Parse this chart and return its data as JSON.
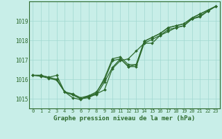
{
  "xlabel": "Graphe pression niveau de la mer (hPa)",
  "xlim": [
    -0.5,
    23.5
  ],
  "ylim": [
    1014.5,
    1020.0
  ],
  "yticks": [
    1015,
    1016,
    1017,
    1018,
    1019
  ],
  "xticks": [
    0,
    1,
    2,
    3,
    4,
    5,
    6,
    7,
    8,
    9,
    10,
    11,
    12,
    13,
    14,
    15,
    16,
    17,
    18,
    19,
    20,
    21,
    22,
    23
  ],
  "xtick_labels": [
    "0",
    "1",
    "2",
    "3",
    "4",
    "5",
    "6",
    "7",
    "8",
    "9",
    "10",
    "11",
    "12",
    "13",
    "14",
    "15",
    "16",
    "17",
    "18",
    "19",
    "20",
    "21",
    "22",
    "23"
  ],
  "bg_color": "#c8eee8",
  "grid_color": "#a0d8d0",
  "line_color": "#2d6a2d",
  "series": [
    {
      "x": [
        0,
        1,
        2,
        3,
        4,
        5,
        6,
        7,
        8,
        9,
        10,
        11,
        12,
        13,
        14,
        15,
        16,
        17,
        18,
        19,
        20,
        21,
        22,
        23
      ],
      "y": [
        1016.2,
        1016.2,
        1016.1,
        1016.2,
        1015.35,
        1015.05,
        1014.95,
        1015.15,
        1015.2,
        1015.85,
        1016.6,
        1017.05,
        1016.65,
        1016.65,
        1017.85,
        1018.05,
        1018.25,
        1018.55,
        1018.65,
        1018.75,
        1019.1,
        1019.2,
        1019.5,
        1019.75
      ]
    },
    {
      "x": [
        0,
        1,
        2,
        3,
        4,
        5,
        6,
        7,
        8,
        9,
        10,
        11,
        12,
        13,
        14,
        15,
        16,
        17,
        18,
        19,
        20,
        21,
        22,
        23
      ],
      "y": [
        1016.2,
        1016.15,
        1016.05,
        1015.95,
        1015.35,
        1015.2,
        1015.0,
        1015.05,
        1015.25,
        1015.45,
        1016.55,
        1016.95,
        1017.05,
        1017.45,
        1017.85,
        1017.85,
        1018.25,
        1018.45,
        1018.65,
        1018.75,
        1019.1,
        1019.25,
        1019.5,
        1019.75
      ]
    },
    {
      "x": [
        0,
        1,
        2,
        3,
        4,
        5,
        6,
        7,
        8,
        9,
        10,
        11,
        12,
        13,
        14,
        15,
        16,
        17,
        18,
        19,
        20,
        21,
        22,
        23
      ],
      "y": [
        1016.2,
        1016.2,
        1016.1,
        1016.0,
        1015.35,
        1015.25,
        1015.05,
        1015.15,
        1015.35,
        1015.95,
        1016.95,
        1017.05,
        1016.65,
        1016.75,
        1017.95,
        1018.15,
        1018.35,
        1018.65,
        1018.75,
        1018.85,
        1019.15,
        1019.35,
        1019.55,
        1019.75
      ]
    },
    {
      "x": [
        3,
        4,
        5,
        6,
        7,
        8,
        9,
        10,
        11,
        12,
        13,
        14,
        15,
        16,
        17,
        18,
        19,
        20,
        21,
        22,
        23
      ],
      "y": [
        1016.0,
        1015.35,
        1015.2,
        1015.0,
        1015.1,
        1015.3,
        1016.05,
        1017.05,
        1017.15,
        1016.75,
        1016.75,
        1017.95,
        1018.15,
        1018.35,
        1018.65,
        1018.75,
        1018.85,
        1019.15,
        1019.35,
        1019.55,
        1019.75
      ]
    }
  ]
}
